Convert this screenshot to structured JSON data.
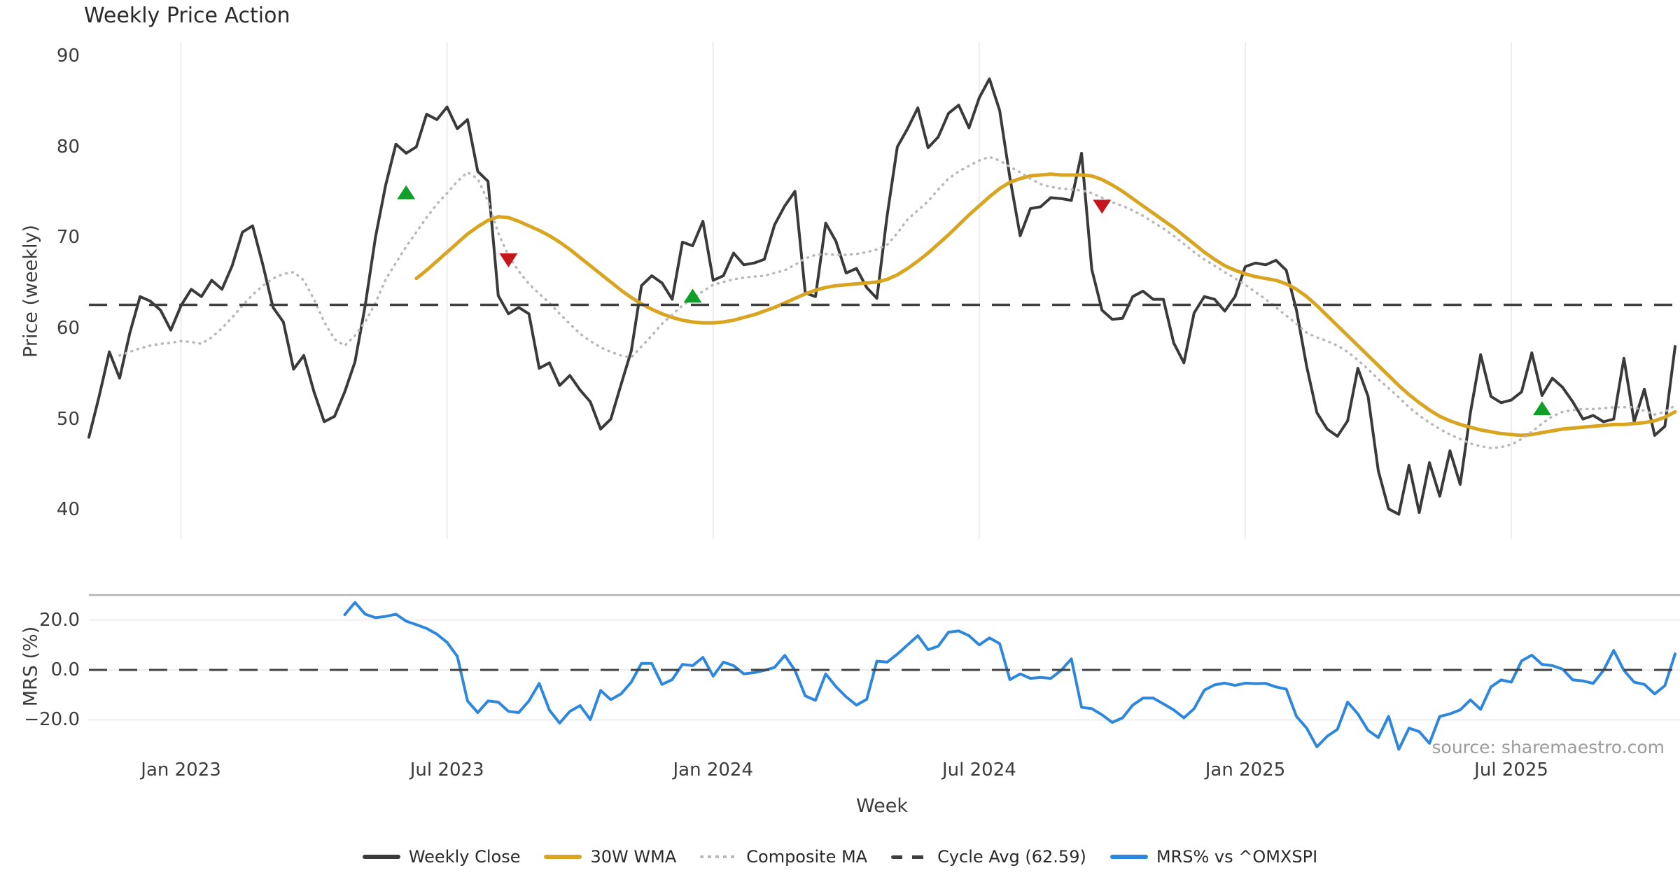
{
  "header": {
    "title": "Weekly Price Action"
  },
  "source_note": "source: sharemaestro.com",
  "legend": {
    "items": [
      {
        "label": "Weekly Close",
        "style": "solid",
        "color": "#3a3a3a"
      },
      {
        "label": "30W WMA",
        "style": "solid",
        "color": "#d9a521"
      },
      {
        "label": "Composite MA",
        "style": "dotted",
        "color": "#b8b8b8"
      },
      {
        "label": "Cycle Avg (62.59)",
        "style": "dashed",
        "color": "#3f3f3f"
      },
      {
        "label": "MRS% vs ^OMXSPI",
        "style": "solid",
        "color": "#2d87dc"
      }
    ]
  },
  "chart_data": {
    "type": "line",
    "title": "Weekly Price Action",
    "x_axis": {
      "label": "Week",
      "unit": "weekly index, w0 = late Oct 2022",
      "total_weeks": 156,
      "ticks": [
        {
          "week": 9,
          "label": "Jan 2023"
        },
        {
          "week": 35,
          "label": "Jul 2023"
        },
        {
          "week": 61,
          "label": "Jan 2024"
        },
        {
          "week": 87,
          "label": "Jul 2024"
        },
        {
          "week": 113,
          "label": "Jan 2025"
        },
        {
          "week": 139,
          "label": "Jul 2025"
        }
      ]
    },
    "panels": [
      {
        "id": "price",
        "ylabel": "Price (weekly)",
        "ylim": [
          36.78,
          91.56
        ],
        "yticks": [
          {
            "v": 90,
            "label": "90"
          },
          {
            "v": 80,
            "label": "80"
          },
          {
            "v": 70,
            "label": "70"
          },
          {
            "v": 60,
            "label": "60"
          },
          {
            "v": 50,
            "label": "50"
          },
          {
            "v": 40,
            "label": "40"
          }
        ],
        "vertical_gridlines_at_ticks": true
      },
      {
        "id": "mrs",
        "ylabel": "MRS (%)",
        "ylim": [
          -33.9,
          29.97
        ],
        "yticks": [
          {
            "v": 20,
            "label": "20.0"
          },
          {
            "v": 0,
            "label": "0.0"
          },
          {
            "v": -20,
            "label": "−20.0"
          }
        ],
        "horizontal_gridlines": [
          20,
          0,
          -20
        ],
        "top_spine": true
      }
    ],
    "series": [
      {
        "name": "Weekly Close",
        "panel": "price",
        "color": "#3a3a3a",
        "style": "solid",
        "width": 4,
        "start_week": 0,
        "values": [
          48.0,
          52.5,
          57.4,
          54.5,
          59.5,
          63.5,
          63.0,
          62.0,
          59.8,
          62.5,
          64.3,
          63.5,
          65.3,
          64.3,
          66.9,
          70.6,
          71.3,
          67.0,
          62.3,
          60.7,
          55.5,
          57.0,
          53.0,
          49.7,
          50.3,
          53.0,
          56.3,
          62.5,
          70.0,
          75.8,
          80.3,
          79.3,
          80.0,
          83.6,
          83.0,
          84.4,
          82.0,
          83.0,
          77.3,
          76.2,
          63.6,
          61.6,
          62.3,
          61.6,
          55.6,
          56.2,
          53.7,
          54.8,
          53.2,
          51.9,
          48.9,
          50.0,
          53.8,
          57.5,
          64.7,
          65.8,
          65.0,
          63.2,
          69.5,
          69.1,
          71.8,
          65.3,
          65.8,
          68.3,
          67.0,
          67.2,
          67.6,
          71.4,
          73.5,
          75.1,
          63.9,
          63.5,
          71.6,
          69.6,
          66.1,
          66.6,
          64.5,
          63.3,
          72.4,
          80.0,
          82.0,
          84.3,
          79.9,
          81.1,
          83.7,
          84.6,
          82.1,
          85.4,
          87.5,
          84.0,
          76.6,
          70.2,
          73.2,
          73.4,
          74.4,
          74.3,
          74.1,
          79.3,
          66.5,
          62.0,
          61.0,
          61.1,
          63.5,
          64.1,
          63.2,
          63.2,
          58.4,
          56.2,
          61.7,
          63.5,
          63.2,
          61.9,
          63.5,
          66.8,
          67.2,
          67.0,
          67.5,
          66.4,
          62.0,
          55.8,
          50.7,
          48.9,
          48.1,
          49.8,
          55.6,
          52.5,
          44.3,
          40.1,
          39.5,
          44.9,
          39.7,
          45.2,
          41.5,
          46.5,
          42.8,
          50.7,
          57.1,
          52.5,
          51.8,
          52.1,
          53.0,
          57.3,
          52.6,
          54.5,
          53.5,
          51.9,
          50.0,
          50.4,
          49.7,
          50.0,
          56.7,
          49.7,
          53.3,
          48.2,
          49.2,
          58.0
        ]
      },
      {
        "name": "30W WMA",
        "panel": "price",
        "color": "#d9a521",
        "style": "solid",
        "width": 5,
        "start_week": 32,
        "values": [
          65.5,
          66.4,
          67.4,
          68.4,
          69.4,
          70.4,
          71.2,
          71.9,
          72.3,
          72.2,
          71.8,
          71.3,
          70.8,
          70.2,
          69.5,
          68.7,
          67.8,
          66.9,
          66.0,
          65.1,
          64.2,
          63.4,
          62.7,
          62.1,
          61.6,
          61.2,
          60.9,
          60.7,
          60.6,
          60.6,
          60.7,
          60.9,
          61.2,
          61.5,
          61.9,
          62.3,
          62.8,
          63.3,
          63.8,
          64.2,
          64.5,
          64.7,
          64.8,
          64.9,
          65.0,
          65.1,
          65.4,
          65.9,
          66.6,
          67.4,
          68.3,
          69.3,
          70.3,
          71.4,
          72.5,
          73.5,
          74.5,
          75.4,
          76.1,
          76.5,
          76.8,
          76.9,
          77.0,
          76.9,
          76.9,
          76.9,
          76.8,
          76.4,
          75.8,
          75.1,
          74.3,
          73.5,
          72.7,
          71.9,
          71.1,
          70.2,
          69.3,
          68.4,
          67.6,
          66.9,
          66.4,
          66.0,
          65.7,
          65.5,
          65.3,
          64.9,
          64.3,
          63.5,
          62.5,
          61.4,
          60.3,
          59.2,
          58.1,
          57.0,
          55.9,
          54.8,
          53.7,
          52.7,
          51.8,
          51.0,
          50.3,
          49.8,
          49.4,
          49.1,
          48.8,
          48.6,
          48.4,
          48.3,
          48.2,
          48.3,
          48.5,
          48.7,
          48.9,
          49.0,
          49.1,
          49.2,
          49.3,
          49.4,
          49.4,
          49.5,
          49.6,
          49.8,
          50.2,
          50.8
        ]
      },
      {
        "name": "Composite MA",
        "panel": "price",
        "color": "#b8b8b8",
        "style": "dotted",
        "width": 3.5,
        "start_week": 3,
        "values": [
          57.0,
          57.4,
          57.8,
          58.1,
          58.3,
          58.4,
          58.6,
          58.5,
          58.3,
          59.0,
          60.0,
          61.2,
          62.5,
          63.7,
          64.7,
          65.5,
          66.0,
          66.2,
          65.3,
          63.2,
          60.7,
          58.8,
          58.1,
          59.2,
          60.7,
          62.8,
          65.4,
          67.2,
          69.0,
          70.6,
          72.2,
          73.7,
          74.9,
          76.2,
          77.2,
          76.5,
          74.0,
          70.5,
          68.0,
          66.3,
          64.9,
          63.8,
          62.8,
          61.6,
          60.5,
          59.4,
          58.6,
          57.9,
          57.4,
          57.0,
          56.8,
          58.0,
          59.2,
          60.5,
          61.5,
          62.5,
          63.3,
          64.1,
          64.8,
          65.1,
          65.4,
          65.6,
          65.7,
          65.8,
          66.1,
          66.4,
          67.0,
          67.7,
          68.1,
          68.2,
          68.1,
          68.1,
          68.2,
          68.4,
          68.7,
          69.2,
          70.5,
          72.0,
          73.0,
          74.0,
          75.3,
          76.5,
          77.3,
          77.9,
          78.5,
          78.9,
          78.5,
          77.8,
          77.2,
          76.5,
          75.9,
          75.6,
          75.4,
          75.3,
          75.2,
          74.9,
          74.4,
          73.9,
          73.5,
          73.0,
          72.4,
          71.7,
          71.0,
          70.2,
          69.3,
          68.4,
          67.6,
          66.9,
          66.2,
          65.5,
          64.8,
          64.0,
          63.2,
          62.3,
          61.4,
          60.5,
          59.5,
          59.0,
          58.6,
          58.1,
          57.4,
          56.5,
          55.5,
          54.4,
          53.4,
          52.4,
          51.3,
          50.4,
          49.6,
          48.9,
          48.3,
          47.8,
          47.3,
          47.0,
          46.8,
          46.9,
          47.2,
          47.8,
          48.6,
          49.5,
          50.3,
          50.8,
          51.0,
          51.1,
          51.1,
          51.2,
          51.3,
          51.3,
          51.3,
          50.9,
          50.5,
          50.8,
          51.5
        ]
      },
      {
        "name": "Cycle Avg (62.59)",
        "panel": "price",
        "color": "#3f3f3f",
        "style": "dashed",
        "width": 3.5,
        "type": "hline",
        "value": 62.59
      },
      {
        "name": "MRS% vs ^OMXSPI",
        "panel": "mrs",
        "color": "#2d87dc",
        "style": "solid",
        "width": 4,
        "start_week": 25,
        "values": [
          22.1,
          27.0,
          22.3,
          20.9,
          21.4,
          22.3,
          19.5,
          18.1,
          16.6,
          14.3,
          11.0,
          5.4,
          -12.4,
          -17.1,
          -12.4,
          -12.9,
          -16.6,
          -17.1,
          -12.4,
          -5.4,
          -16.1,
          -21.3,
          -16.6,
          -14.3,
          -19.9,
          -8.2,
          -11.9,
          -9.6,
          -4.9,
          2.6,
          2.6,
          -5.8,
          -3.9,
          2.2,
          1.7,
          5.0,
          -2.5,
          3.1,
          1.7,
          -1.6,
          -1.1,
          -0.2,
          1.0,
          5.8,
          -0.2,
          -10.4,
          -12.2,
          -1.6,
          -6.7,
          -10.8,
          -14.1,
          -11.8,
          3.5,
          3.1,
          6.3,
          10.0,
          13.7,
          8.1,
          9.5,
          15.1,
          15.6,
          13.7,
          10.0,
          12.8,
          10.5,
          -3.9,
          -1.6,
          -3.4,
          -3.0,
          -3.4,
          -0.2,
          4.4,
          -15.0,
          -15.5,
          -18.0,
          -21.0,
          -19.2,
          -14.1,
          -11.3,
          -11.3,
          -13.6,
          -16.0,
          -19.2,
          -15.5,
          -8.1,
          -6.0,
          -5.3,
          -6.2,
          -5.3,
          -5.5,
          -5.4,
          -6.8,
          -7.7,
          -18.6,
          -23.3,
          -30.8,
          -26.6,
          -23.8,
          -12.9,
          -17.6,
          -24.2,
          -27.1,
          -18.6,
          -31.8,
          -23.3,
          -24.7,
          -29.4,
          -18.6,
          -17.6,
          -16.0,
          -12.0,
          -15.8,
          -6.8,
          -4.0,
          -4.9,
          3.6,
          5.9,
          2.2,
          1.7,
          0.3,
          -4.0,
          -4.4,
          -5.4,
          -0.2,
          7.8,
          -0.2,
          -4.9,
          -5.8,
          -9.6,
          -6.3,
          6.4
        ]
      },
      {
        "name": "MRS zero line",
        "panel": "mrs",
        "color": "#424242",
        "style": "dashed",
        "width": 3,
        "type": "hline",
        "value": 0
      }
    ],
    "signals": {
      "buy": {
        "marker": "triangle-up",
        "color": "#10a02a",
        "points": [
          {
            "week": 31,
            "price": 75.0
          },
          {
            "week": 59,
            "price": 63.6
          },
          {
            "week": 142,
            "price": 51.2
          }
        ]
      },
      "sell": {
        "marker": "triangle-down",
        "color": "#c4161c",
        "points": [
          {
            "week": 41,
            "price": 67.5
          },
          {
            "week": 99,
            "price": 73.4
          }
        ]
      }
    },
    "colors": {
      "background": "#ffffff",
      "gridline": "#ededed",
      "top_spine": "#b3b3b3",
      "tick_text": "#3c3c3c",
      "title_text": "#2b2b2b",
      "source_text": "#9b9b9b"
    }
  }
}
